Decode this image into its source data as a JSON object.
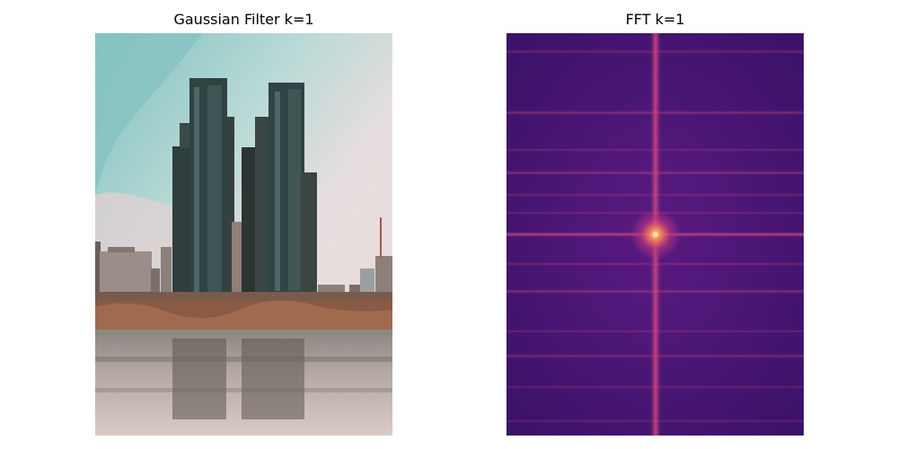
{
  "panels": [
    {
      "title": "Gaussian Filter k=1",
      "content": "city skyline with twin towers reflected in river"
    },
    {
      "title": "FFT k=1",
      "content": "fourier magnitude spectrum, magma colormap"
    }
  ],
  "colors": {
    "sky_teal": "#8cc7c4",
    "sky_pink": "#e9dcdc",
    "tower_dark": "#2a3b3b",
    "water": "#c8bab2",
    "fft_bg": "#3e1470",
    "fft_line": "#b5387a",
    "fft_center": "#f89a5c"
  }
}
